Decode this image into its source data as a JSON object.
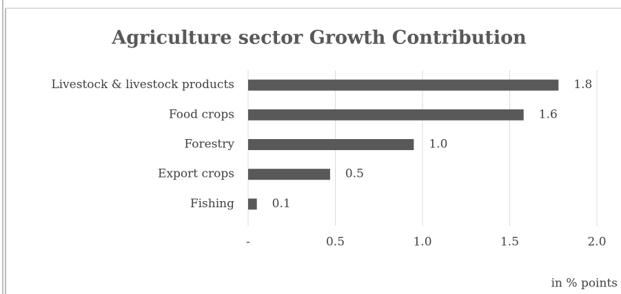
{
  "chart_data": {
    "type": "bar",
    "orientation": "horizontal",
    "title": "Agriculture sector Growth Contribution",
    "x_label": "in % points",
    "categories": [
      "Livestock & livestock products",
      "Food crops",
      "Forestry",
      "Export crops",
      "Fishing"
    ],
    "values": [
      1.78,
      1.58,
      0.95,
      0.47,
      0.05
    ],
    "value_labels": [
      "1.8",
      "1.6",
      "1.0",
      "0.5",
      "0.1"
    ],
    "color": "#595959",
    "xlim": [
      0,
      2
    ],
    "xticks": [
      {
        "value": 0,
        "label": "-"
      },
      0.5,
      {
        "value": 1,
        "label": "1.0"
      },
      1.5,
      {
        "value": 2,
        "label": "2.0"
      }
    ],
    "grid": true
  }
}
